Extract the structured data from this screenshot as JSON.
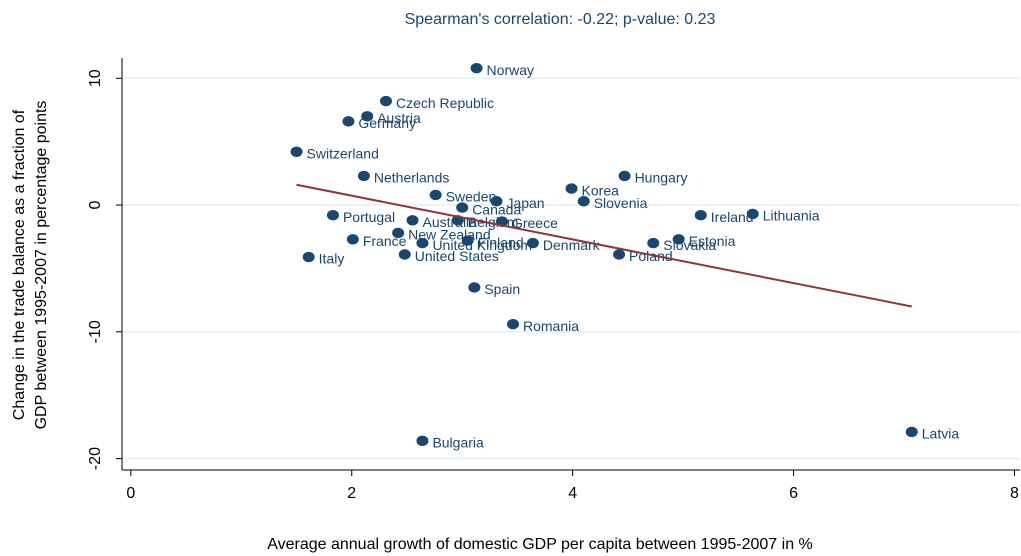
{
  "chart_data": {
    "type": "scatter",
    "title": "Spearman's correlation:  -0.22; p-value: 0.23",
    "x_label": "Average annual growth of domestic GDP per capita between 1995-2007 in %",
    "y_label": [
      "Change in the trade balance as a fraction of",
      "GDP between 1995-2007 in percentage points"
    ],
    "labels": [
      "Norway",
      "Czech Republic",
      "Austria",
      "Germany",
      "Switzerland",
      "Netherlands",
      "Sweden",
      "Japan",
      "Canada",
      "Korea",
      "Hungary",
      "Slovenia",
      "Ireland",
      "Lithuania",
      "Portugal",
      "Australia",
      "Belgium",
      "Greece",
      "New Zealand",
      "France",
      "United Kingdom",
      "Finland",
      "Denmark",
      "Estonia",
      "Slovakia",
      "Poland",
      "Italy",
      "United States",
      "Spain",
      "Romania",
      "Bulgaria",
      "Latvia"
    ],
    "x": [
      3.13,
      2.31,
      2.14,
      1.97,
      1.5,
      2.11,
      2.76,
      3.31,
      3.0,
      3.99,
      4.47,
      4.1,
      5.16,
      5.63,
      1.83,
      2.55,
      2.96,
      3.36,
      2.42,
      2.01,
      2.64,
      3.05,
      3.64,
      4.96,
      4.73,
      4.42,
      1.61,
      2.48,
      3.11,
      3.46,
      2.64,
      7.07
    ],
    "y": [
      10.8,
      8.2,
      7.0,
      6.6,
      4.2,
      2.3,
      0.8,
      0.3,
      -0.2,
      1.3,
      2.3,
      0.3,
      -0.8,
      -0.7,
      -0.8,
      -1.2,
      -1.2,
      -1.3,
      -2.2,
      -2.7,
      -3.0,
      -2.8,
      -3.0,
      -2.7,
      -3.0,
      -3.9,
      -4.1,
      -3.9,
      -6.5,
      -9.4,
      -18.6,
      -17.9
    ],
    "color": "#1a476f",
    "fit": {
      "x": [
        1.5,
        7.07
      ],
      "y": [
        1.6,
        -8.0
      ],
      "color": "#90353b"
    },
    "xlim": [
      -0.08,
      8.05
    ],
    "ylim": [
      -20.9,
      11.6
    ],
    "xticks": [
      0,
      2,
      4,
      6,
      8
    ],
    "yticks": [
      -20,
      -10,
      0,
      10
    ],
    "grid": true
  }
}
